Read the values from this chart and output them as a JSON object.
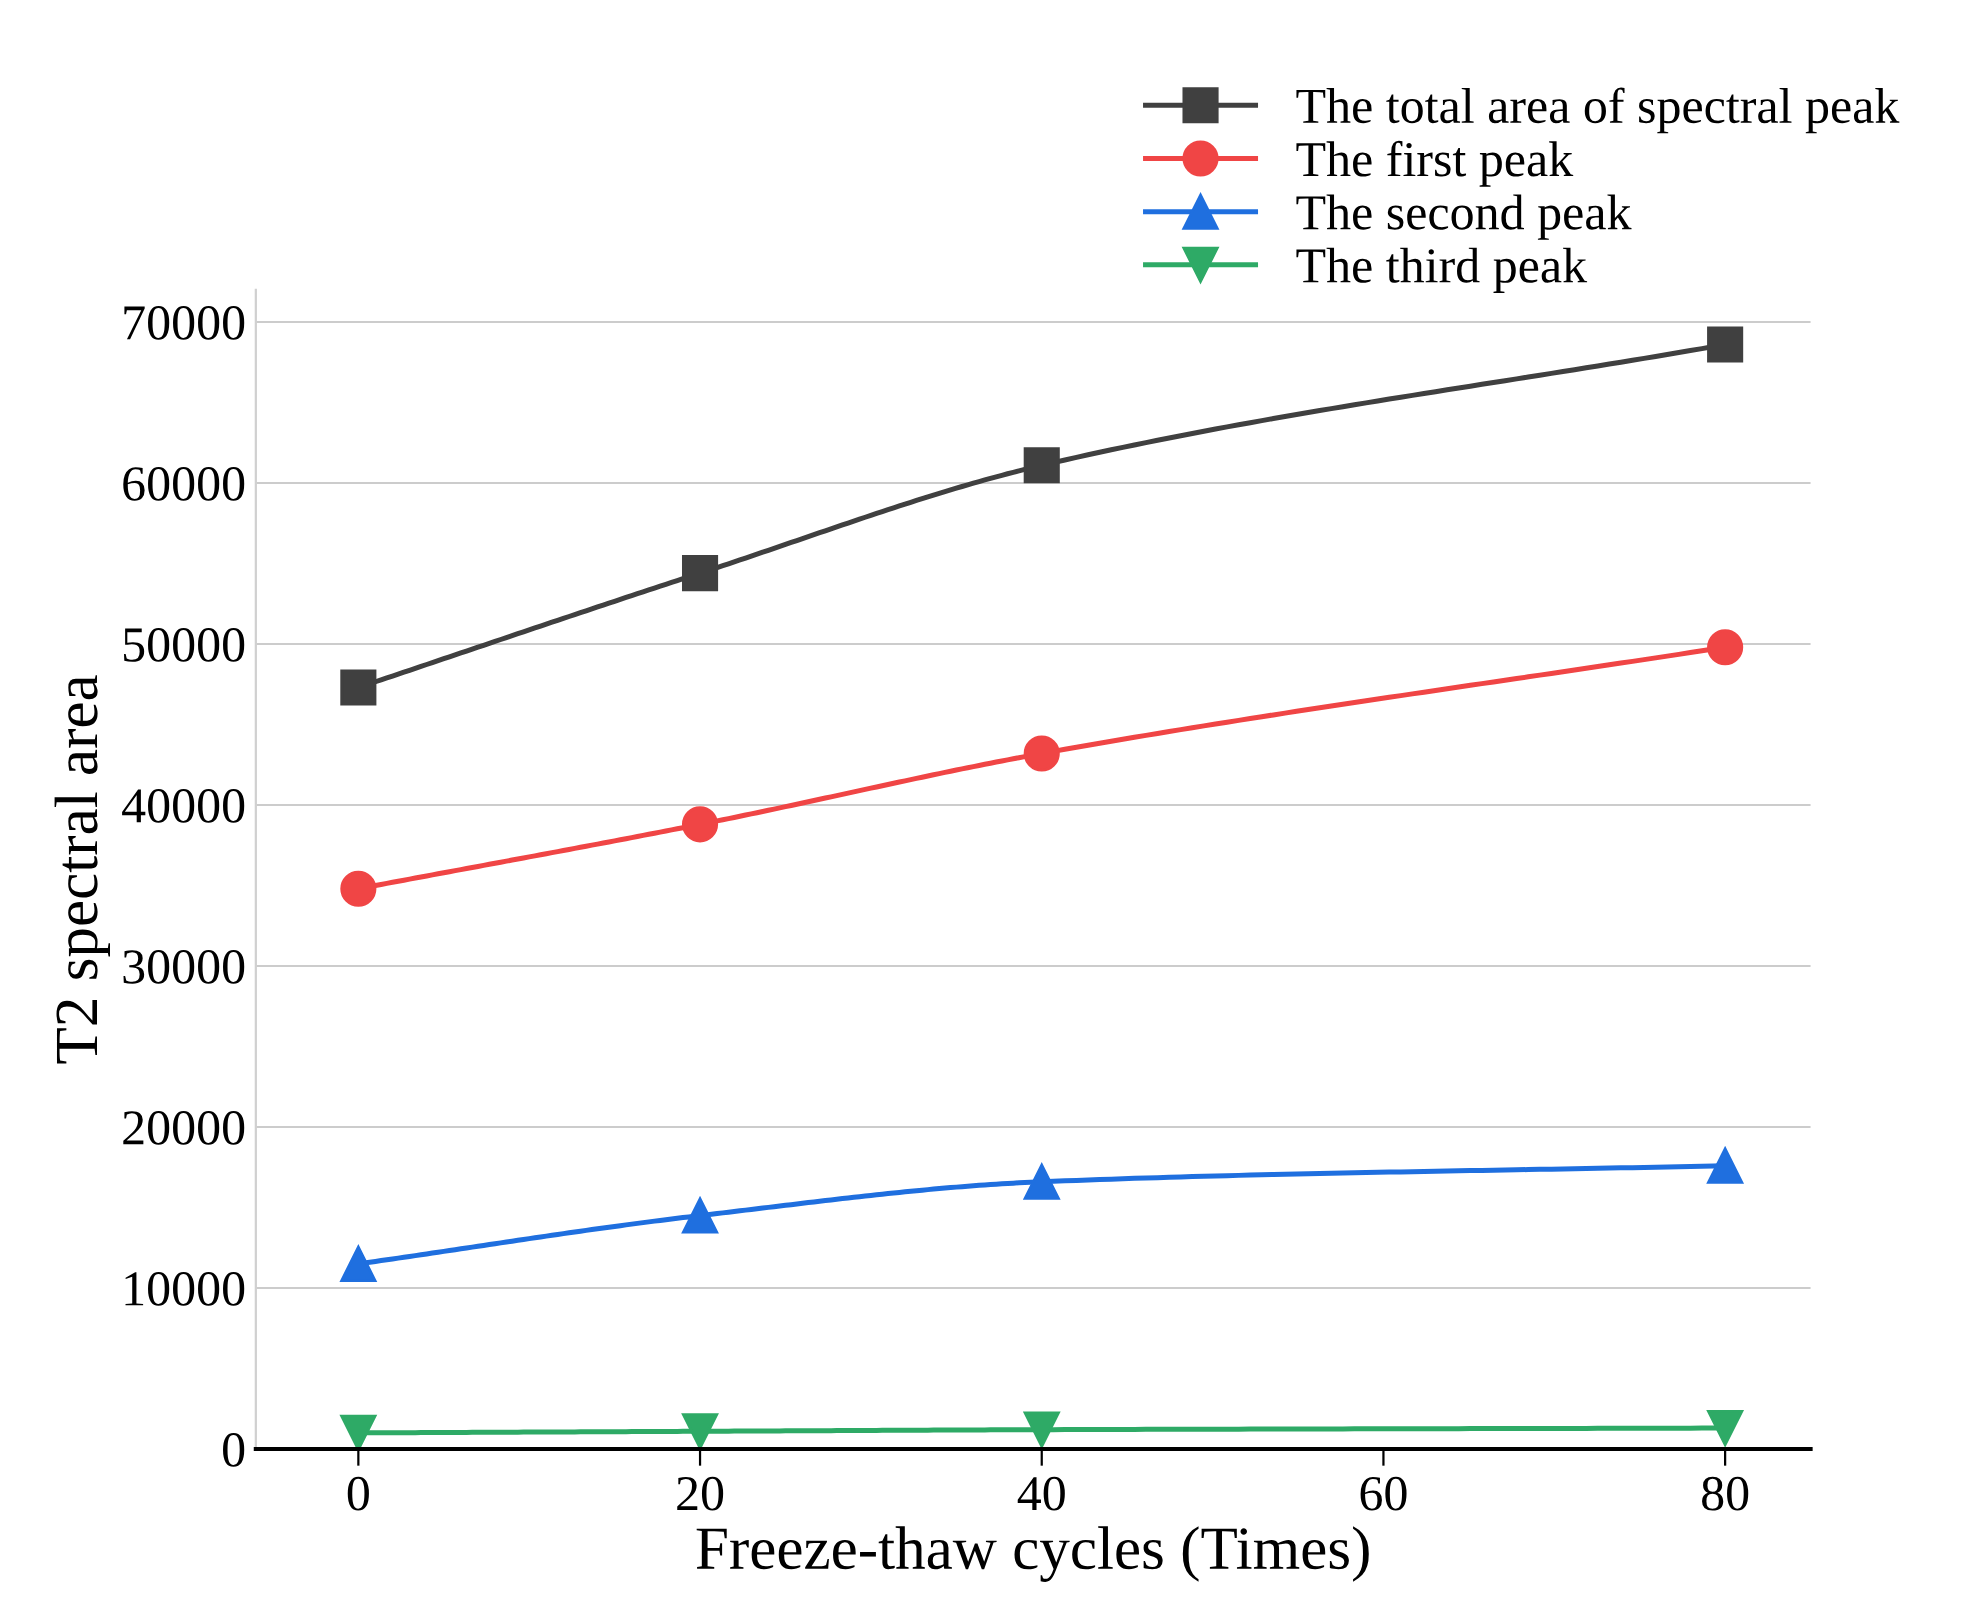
{
  "chart_data": {
    "type": "line",
    "xlabel": "Freeze-thaw cycles (Times)",
    "ylabel": "T2 spectral area",
    "x": [
      0,
      20,
      40,
      80
    ],
    "series": [
      {
        "name": "The total area of spectral peak",
        "color": "#404040",
        "marker": "square",
        "values": [
          47300,
          54400,
          61100,
          68600
        ]
      },
      {
        "name": "The first peak",
        "color": "#f04545",
        "marker": "circle",
        "values": [
          34800,
          38800,
          43200,
          49800
        ]
      },
      {
        "name": "The second peak",
        "color": "#1f6fdf",
        "marker": "triangle",
        "values": [
          11500,
          14500,
          16600,
          17600
        ]
      },
      {
        "name": "The third peak",
        "color": "#2eaa66",
        "marker": "triangle_down",
        "values": [
          1000,
          1100,
          1200,
          1300
        ]
      }
    ],
    "xlim": [
      -6,
      85
    ],
    "xticks": [
      0,
      20,
      40,
      60,
      80
    ],
    "ylim": [
      0,
      72000
    ],
    "yticks": [
      0,
      10000,
      20000,
      30000,
      40000,
      50000,
      60000,
      70000
    ],
    "grid": "y",
    "legend": "top right",
    "line_style": "solid"
  }
}
